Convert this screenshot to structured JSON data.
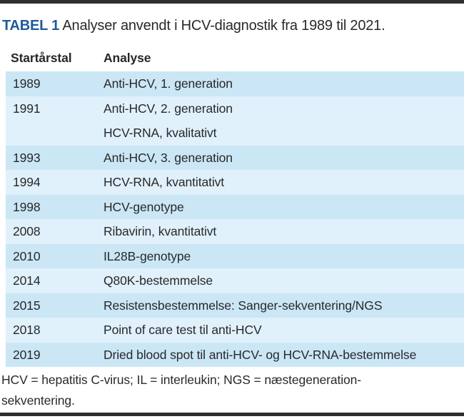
{
  "title": {
    "tag": "TABEL 1",
    "text": "Analyser anvendt i HCV-diagnostik fra 1989 til 2021."
  },
  "table": {
    "columns": [
      "Startårstal",
      "Analyse"
    ],
    "rows": [
      {
        "year": "1989",
        "lines": [
          "Anti-HCV, 1. generation"
        ]
      },
      {
        "year": "1991",
        "lines": [
          "Anti-HCV, 2. generation",
          "HCV-RNA, kvalitativt"
        ]
      },
      {
        "year": "1993",
        "lines": [
          "Anti-HCV, 3. generation"
        ]
      },
      {
        "year": "1994",
        "lines": [
          "HCV-RNA, kvantitativt"
        ]
      },
      {
        "year": "1998",
        "lines": [
          "HCV-genotype"
        ]
      },
      {
        "year": "2008",
        "lines": [
          "Ribavirin, kvantitativt"
        ]
      },
      {
        "year": "2010",
        "lines": [
          "IL28B-genotype"
        ]
      },
      {
        "year": "2014",
        "lines": [
          "Q80K-bestemmelse"
        ]
      },
      {
        "year": "2015",
        "lines": [
          "Resistensbestemmelse: Sanger-sekventering/NGS"
        ]
      },
      {
        "year": "2018",
        "lines": [
          "Point of care test til anti-HCV"
        ]
      },
      {
        "year": "2019",
        "lines": [
          "Dried blood spot til anti-HCV- og HCV-RNA-bestemmelse"
        ]
      }
    ]
  },
  "footnote": {
    "line1": "HCV = hepatitis C-virus; IL = interleukin; NGS = næstegeneration-",
    "line2": "sekventering."
  },
  "colors": {
    "accent_blue": "#1e5b99",
    "row_shade_dark": "#cbe7f6",
    "row_shade_light": "#e0f1fb",
    "rule": "#2f2f2f",
    "text": "#29292c"
  }
}
